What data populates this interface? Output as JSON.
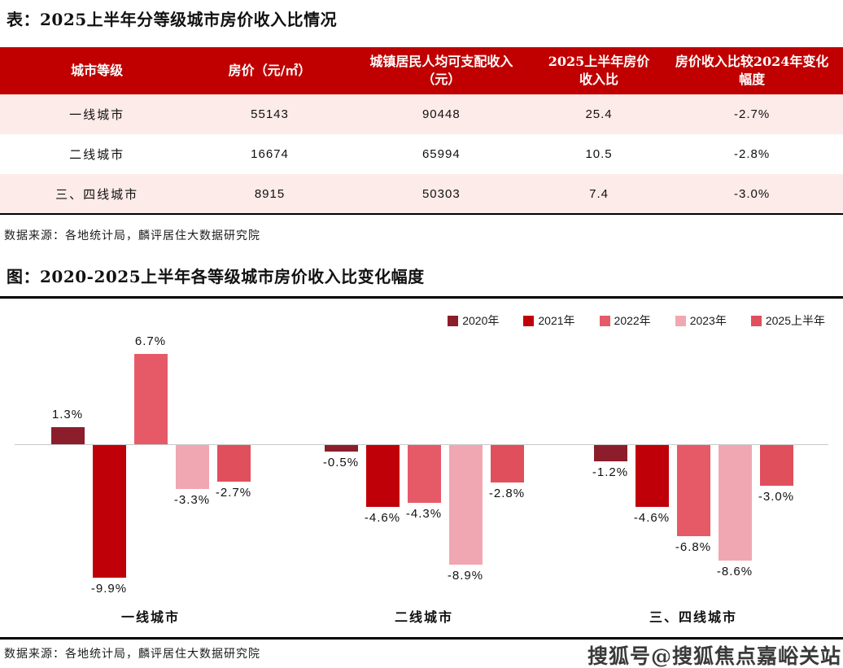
{
  "sources": {
    "table": "数据来源：各地统计局，麟评居住大数据研究院",
    "chart": "数据来源：各地统计局，麟评居住大数据研究院"
  },
  "watermark": {
    "text": "搜狐号@搜狐焦点嘉峪关站"
  },
  "table_colors": {
    "header_bg": "#C00000",
    "header_text": "#FFFFFF",
    "row_alt_bg": "#FCEBE9",
    "bottom_border": "#000000"
  },
  "chart_data": [
    {
      "type": "table",
      "title": "表：2025上半年分等级城市房价收入比情况",
      "columns": [
        "城市等级",
        "房价（元/㎡）",
        "城镇居民人均可支配收入（元）",
        "2025上半年房价收入比",
        "房价收入比较2024年变化幅度"
      ],
      "rows": [
        [
          "一线城市",
          "55143",
          "90448",
          "25.4",
          "-2.7%"
        ],
        [
          "二线城市",
          "16674",
          "65994",
          "10.5",
          "-2.8%"
        ],
        [
          "三、四线城市",
          "8915",
          "50303",
          "7.4",
          "-3.0%"
        ]
      ]
    },
    {
      "type": "bar",
      "title": "图：2020-2025上半年各等级城市房价收入比变化幅度",
      "categories": [
        "一线城市",
        "二线城市",
        "三、四线城市"
      ],
      "series": [
        {
          "name": "2020年",
          "color": "#8C1E2C",
          "values": [
            1.3,
            -0.5,
            -1.2
          ]
        },
        {
          "name": "2021年",
          "color": "#C00008",
          "values": [
            -9.9,
            -4.6,
            -4.6
          ]
        },
        {
          "name": "2022年",
          "color": "#E65A68",
          "values": [
            6.7,
            -4.3,
            -6.8
          ]
        },
        {
          "name": "2023年",
          "color": "#F1A7B1",
          "values": [
            -3.3,
            -8.9,
            -8.6
          ]
        },
        {
          "name": "2025上半年",
          "color": "#E04F5C",
          "values": [
            -2.7,
            -2.8,
            -3.0
          ]
        }
      ],
      "value_suffix": "%",
      "ylim": [
        -10.5,
        7.5
      ],
      "grid": false,
      "zero_line": true,
      "legend_position": "top-right",
      "data_labels": true
    }
  ]
}
